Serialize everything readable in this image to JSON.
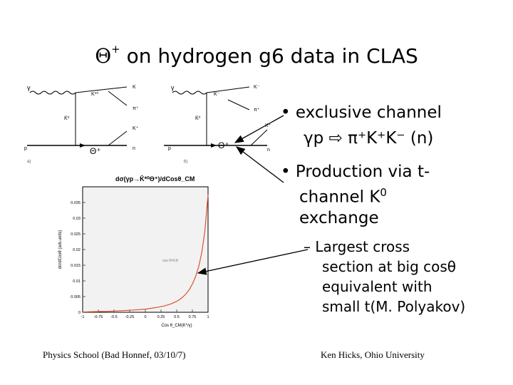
{
  "slide": {
    "title_symbol": "Θ",
    "title_sup": "+",
    "title_text": "on hydrogen g6 data in CLAS"
  },
  "bullets": {
    "b1_line1": "• exclusive channel",
    "b1_line2": "γp ⇨ π⁺K⁺K⁻ (n)",
    "b2_line1": "• Production via t-",
    "b2_line2": "channel K",
    "b2_line2_sup": "0",
    "b2_line3": "exchange",
    "sub_line1": "– Largest cross",
    "sub_line2": "section at big cosθ",
    "sub_line3": "equivalent with",
    "sub_line4": "small t(M. Polyakov)"
  },
  "diagrams": {
    "a": {
      "gamma": "γ",
      "kstar": "K*⁰",
      "k_out": "K",
      "kbar": "K̄⁰",
      "pi": "π⁺",
      "k_plus": "K⁺",
      "p": "p",
      "n": "n",
      "theta": "Θ⁺",
      "label": "a)"
    },
    "b": {
      "gamma": "γ",
      "kstar": "K⁻",
      "k_out": "K⁻",
      "kbar": "K̄⁰",
      "pi": "π⁺",
      "k_plus": "K⁺",
      "p": "p",
      "n": "n",
      "theta": "Θ⁺",
      "label": "b)"
    }
  },
  "chart_data": {
    "type": "line",
    "title": "dσ(γp→K̄*⁰Θ⁺)/dCosθ_CM",
    "xlabel": "Cos θ_CM(K*/γ)",
    "ylabel": "dσ/dCosθ (arb.units)",
    "xlim": [
      -1,
      1
    ],
    "ylim": [
      0,
      0.04
    ],
    "x_ticks": [
      -1,
      -0.75,
      -0.5,
      -0.25,
      0,
      0.25,
      0.5,
      0.75,
      1
    ],
    "x_tick_labels": [
      "-1",
      "-0.75",
      "-0.5",
      "-0.25",
      "0",
      "0.25",
      "0.5",
      "0.75",
      "1"
    ],
    "y_ticks": [
      0,
      0.005,
      0.01,
      0.015,
      0.02,
      0.025,
      0.03,
      0.035
    ],
    "y_tick_labels": [
      "0",
      "0.005",
      "0.01",
      "0.015",
      "0.02",
      "0.025",
      "0.03",
      "0.035"
    ],
    "annotation": "cos θ=0.8",
    "grid": false,
    "series": [
      {
        "x": [
          -1,
          -0.8,
          -0.6,
          -0.4,
          -0.2,
          0,
          0.1,
          0.2,
          0.3,
          0.4,
          0.5,
          0.55,
          0.6,
          0.65,
          0.7,
          0.75,
          0.8,
          0.85,
          0.9,
          0.95,
          1.0
        ],
        "y": [
          0.0001,
          0.0002,
          0.0003,
          0.0005,
          0.0007,
          0.001,
          0.0013,
          0.0016,
          0.002,
          0.0026,
          0.0035,
          0.0041,
          0.0049,
          0.0059,
          0.0072,
          0.009,
          0.0113,
          0.0145,
          0.019,
          0.026,
          0.0375
        ]
      }
    ]
  },
  "footer": {
    "left": "Physics School (Bad Honnef, 03/10/7)",
    "right": "Ken Hicks, Ohio University"
  }
}
